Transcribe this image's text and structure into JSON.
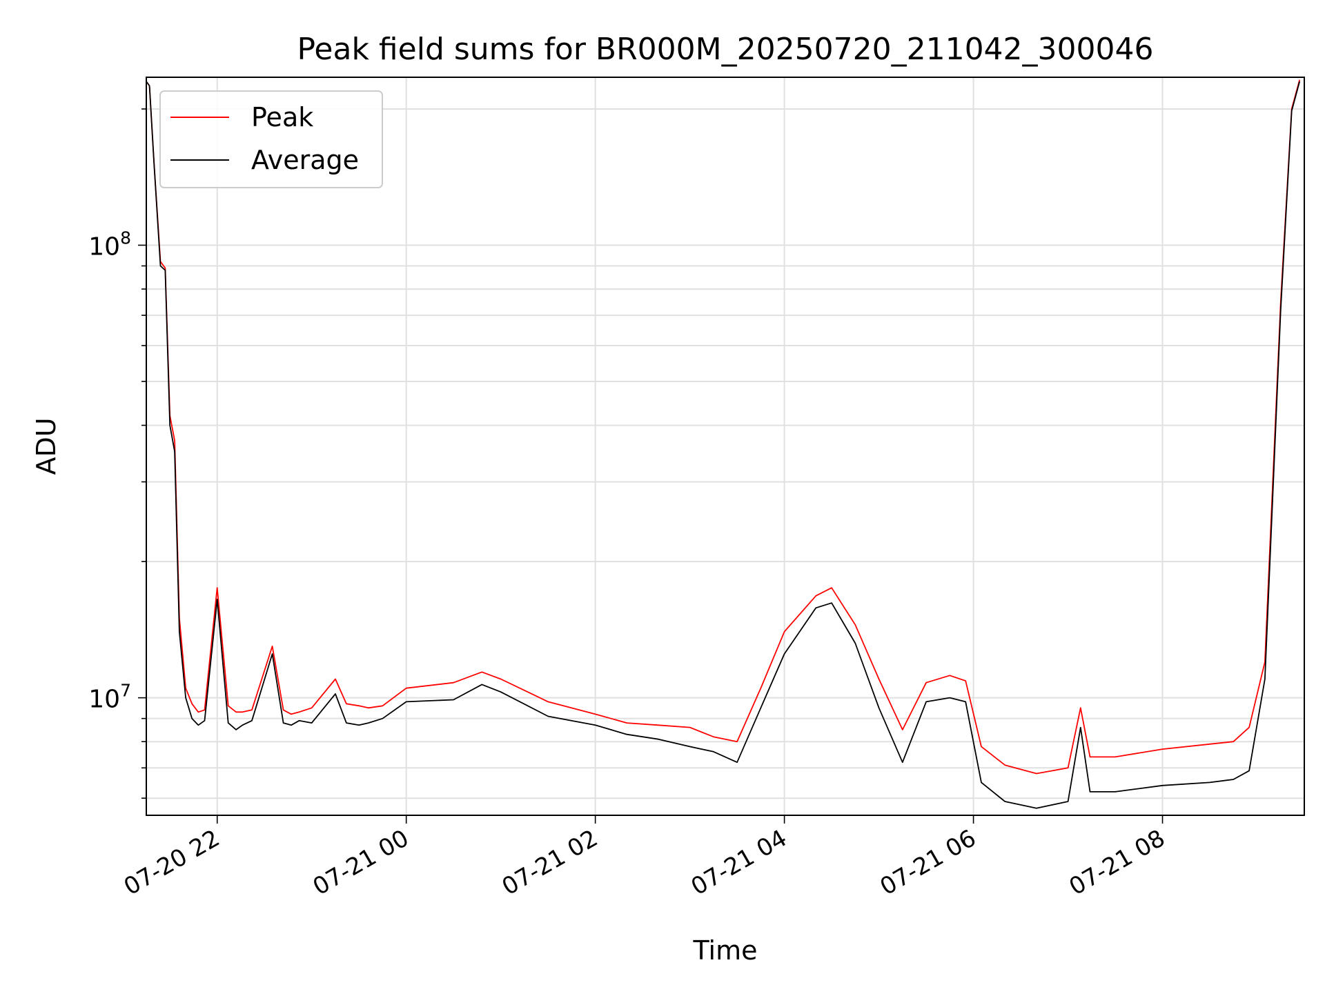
{
  "chart_data": {
    "type": "line",
    "title": "Peak field sums for BR000M_20250720_211042_300046",
    "xlabel": "Time",
    "ylabel": "ADU",
    "yscale": "log",
    "ylim": [
      5500000,
      235000000
    ],
    "xlim": [
      "2025-07-20 21:15",
      "2025-07-21 09:30"
    ],
    "grid": true,
    "legend": "upper-left",
    "x_ticks": [
      "07-20 22",
      "07-21 00",
      "07-21 02",
      "07-21 04",
      "07-21 06",
      "07-21 08"
    ],
    "y_ticks": [
      {
        "value": 10000000,
        "base": "10",
        "exp": "7"
      },
      {
        "value": 100000000,
        "base": "10",
        "exp": "8"
      }
    ],
    "series": [
      {
        "name": "Peak",
        "color": "#ff0000",
        "x": [
          "2025-07-20 21:15",
          "2025-07-20 21:17",
          "2025-07-20 21:20",
          "2025-07-20 21:24",
          "2025-07-20 21:27",
          "2025-07-20 21:30",
          "2025-07-20 21:33",
          "2025-07-20 21:36",
          "2025-07-20 21:40",
          "2025-07-20 21:44",
          "2025-07-20 21:48",
          "2025-07-20 21:52",
          "2025-07-20 22:00",
          "2025-07-20 22:07",
          "2025-07-20 22:12",
          "2025-07-20 22:16",
          "2025-07-20 22:22",
          "2025-07-20 22:35",
          "2025-07-20 22:42",
          "2025-07-20 22:47",
          "2025-07-20 22:52",
          "2025-07-20 23:00",
          "2025-07-20 23:15",
          "2025-07-20 23:22",
          "2025-07-20 23:30",
          "2025-07-20 23:36",
          "2025-07-20 23:45",
          "2025-07-21 00:00",
          "2025-07-21 00:30",
          "2025-07-21 00:48",
          "2025-07-21 01:00",
          "2025-07-21 01:30",
          "2025-07-21 02:00",
          "2025-07-21 02:20",
          "2025-07-21 02:40",
          "2025-07-21 03:00",
          "2025-07-21 03:15",
          "2025-07-21 03:30",
          "2025-07-21 03:45",
          "2025-07-21 04:00",
          "2025-07-21 04:20",
          "2025-07-21 04:30",
          "2025-07-21 04:45",
          "2025-07-21 05:00",
          "2025-07-21 05:15",
          "2025-07-21 05:30",
          "2025-07-21 05:45",
          "2025-07-21 05:55",
          "2025-07-21 06:05",
          "2025-07-21 06:20",
          "2025-07-21 06:40",
          "2025-07-21 07:00",
          "2025-07-21 07:08",
          "2025-07-21 07:14",
          "2025-07-21 07:30",
          "2025-07-21 08:00",
          "2025-07-21 08:30",
          "2025-07-21 08:45",
          "2025-07-21 08:55",
          "2025-07-21 09:05",
          "2025-07-21 09:15",
          "2025-07-21 09:22",
          "2025-07-21 09:27"
        ],
        "values": [
          230000000,
          225000000,
          150000000,
          92000000,
          89000000,
          42000000,
          37000000,
          15000000,
          10500000,
          9700000,
          9300000,
          9400000,
          17500000,
          9600000,
          9300000,
          9300000,
          9400000,
          13000000,
          9400000,
          9200000,
          9300000,
          9500000,
          11000000,
          9700000,
          9600000,
          9500000,
          9600000,
          10500000,
          10800000,
          11400000,
          11000000,
          9800000,
          9200000,
          8800000,
          8700000,
          8600000,
          8200000,
          8000000,
          10500000,
          14000000,
          16800000,
          17500000,
          14500000,
          11000000,
          8500000,
          10800000,
          11200000,
          10900000,
          7800000,
          7100000,
          6800000,
          7000000,
          9500000,
          7400000,
          7400000,
          7700000,
          7900000,
          8000000,
          8600000,
          12000000,
          75000000,
          200000000,
          232000000
        ]
      },
      {
        "name": "Average",
        "color": "#000000",
        "x": [
          "2025-07-20 21:15",
          "2025-07-20 21:17",
          "2025-07-20 21:20",
          "2025-07-20 21:24",
          "2025-07-20 21:27",
          "2025-07-20 21:30",
          "2025-07-20 21:33",
          "2025-07-20 21:36",
          "2025-07-20 21:40",
          "2025-07-20 21:44",
          "2025-07-20 21:48",
          "2025-07-20 21:52",
          "2025-07-20 22:00",
          "2025-07-20 22:07",
          "2025-07-20 22:12",
          "2025-07-20 22:16",
          "2025-07-20 22:22",
          "2025-07-20 22:35",
          "2025-07-20 22:42",
          "2025-07-20 22:47",
          "2025-07-20 22:52",
          "2025-07-20 23:00",
          "2025-07-20 23:15",
          "2025-07-20 23:22",
          "2025-07-20 23:30",
          "2025-07-20 23:36",
          "2025-07-20 23:45",
          "2025-07-21 00:00",
          "2025-07-21 00:30",
          "2025-07-21 00:48",
          "2025-07-21 01:00",
          "2025-07-21 01:30",
          "2025-07-21 02:00",
          "2025-07-21 02:20",
          "2025-07-21 02:40",
          "2025-07-21 03:00",
          "2025-07-21 03:15",
          "2025-07-21 03:30",
          "2025-07-21 03:45",
          "2025-07-21 04:00",
          "2025-07-21 04:20",
          "2025-07-21 04:30",
          "2025-07-21 04:45",
          "2025-07-21 05:00",
          "2025-07-21 05:15",
          "2025-07-21 05:30",
          "2025-07-21 05:45",
          "2025-07-21 05:55",
          "2025-07-21 06:05",
          "2025-07-21 06:20",
          "2025-07-21 06:40",
          "2025-07-21 07:00",
          "2025-07-21 07:08",
          "2025-07-21 07:14",
          "2025-07-21 07:30",
          "2025-07-21 08:00",
          "2025-07-21 08:30",
          "2025-07-21 08:45",
          "2025-07-21 08:55",
          "2025-07-21 09:05",
          "2025-07-21 09:15",
          "2025-07-21 09:22",
          "2025-07-21 09:27"
        ],
        "values": [
          230000000,
          225000000,
          150000000,
          90000000,
          88000000,
          40000000,
          35000000,
          14000000,
          10000000,
          9000000,
          8700000,
          8900000,
          16500000,
          8800000,
          8500000,
          8700000,
          8900000,
          12500000,
          8800000,
          8700000,
          8900000,
          8800000,
          10200000,
          8800000,
          8700000,
          8800000,
          9000000,
          9800000,
          9900000,
          10700000,
          10300000,
          9100000,
          8700000,
          8300000,
          8100000,
          7800000,
          7600000,
          7200000,
          9500000,
          12500000,
          15800000,
          16200000,
          13200000,
          9500000,
          7200000,
          9800000,
          10000000,
          9800000,
          6500000,
          5900000,
          5700000,
          5900000,
          8600000,
          6200000,
          6200000,
          6400000,
          6500000,
          6600000,
          6900000,
          11000000,
          72000000,
          198000000,
          230000000
        ]
      }
    ]
  }
}
